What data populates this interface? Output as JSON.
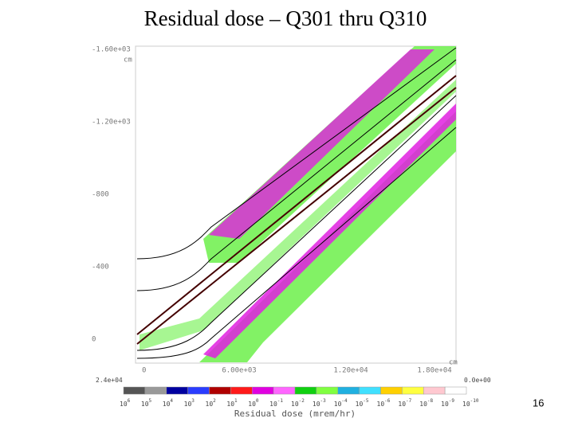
{
  "title": "Residual dose – Q301 thru Q310",
  "page_number": "16",
  "plot": {
    "y_unit": "cm",
    "x_unit": "cm",
    "y_tick_labels": [
      "-1.60e+03",
      "-1.20e+03",
      "-800",
      "-400",
      "0"
    ],
    "x_tick_labels": [
      "0",
      "6.00e+03",
      "1.20e+04",
      "1.80e+04"
    ]
  },
  "colorbar": {
    "title": "Residual dose (mrem/hr)",
    "max_label": "2.4e+04",
    "min_label": "0.0e+00",
    "base": "10",
    "exponents": [
      "6",
      "5",
      "4",
      "3",
      "2",
      "1",
      "0",
      "-1",
      "-2",
      "-3",
      "-4",
      "-5",
      "-6",
      "-7",
      "-8",
      "-9",
      "-10"
    ],
    "colors": [
      "#555555",
      "#999999",
      "#0000a0",
      "#2a3cff",
      "#b00000",
      "#ff1a1a",
      "#e000e0",
      "#ff66ff",
      "#10d010",
      "#80ff40",
      "#20b0e0",
      "#40e0ff",
      "#ffd000",
      "#ffff40",
      "#ffc8d0",
      "#ffffff"
    ]
  }
}
